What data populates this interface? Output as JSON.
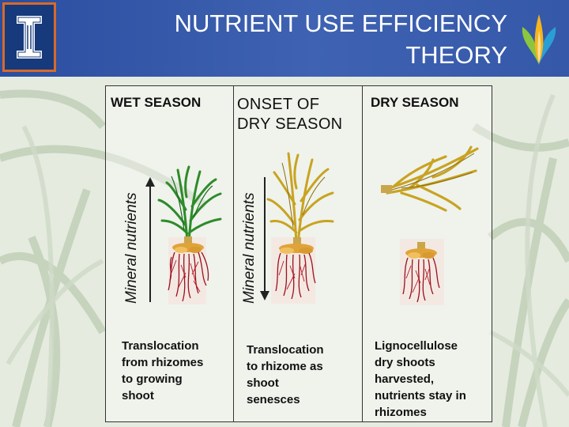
{
  "title": {
    "line1": "NUTRIENT USE EFFICIENCY",
    "line2": "THEORY"
  },
  "panels": [
    {
      "heading": "WET SEASON",
      "axis_label": "Mineral nutrients",
      "arrow": "up",
      "caption": [
        "Translocation",
        "from rhizomes",
        "to growing",
        "shoot"
      ]
    },
    {
      "heading": [
        "ONSET OF",
        "DRY SEASON"
      ],
      "axis_label": "Mineral nutrients",
      "arrow": "down",
      "caption": [
        "Translocation",
        "to rhizome as",
        "shoot",
        "senesces"
      ]
    },
    {
      "heading": "DRY SEASON",
      "caption": [
        "Lignocellulose",
        "dry shoots",
        "harvested,",
        "nutrients stay in",
        "rhizomes"
      ]
    }
  ],
  "colors": {
    "header": "#3558a8",
    "logo_border": "#d56b2a",
    "green_shoot": "#2e8b2a",
    "yellow_shoot": "#c9a321",
    "roots": "#9a1020",
    "rhizome": "#e0a33a"
  }
}
